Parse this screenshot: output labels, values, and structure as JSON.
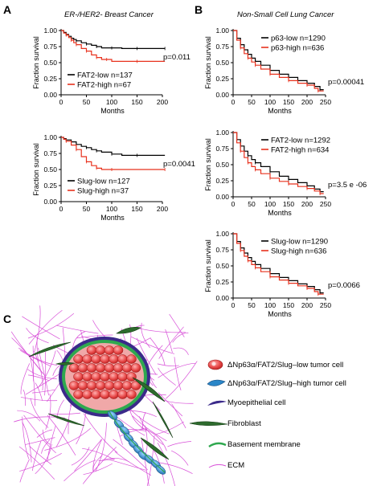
{
  "figure": {
    "panel_a": {
      "letter": "A",
      "title": "ER-/HER2- Breast Cancer"
    },
    "panel_b": {
      "letter": "B",
      "title": "Non-Small Cell Lung Cancer"
    },
    "panel_c": {
      "letter": "C",
      "legend": [
        {
          "label": "ΔNp63α/FAT2/Slug–low tumor cell",
          "icon": "red-tumor-cell-icon"
        },
        {
          "label": "ΔNp63α/FAT2/Slug–high tumor cell",
          "icon": "blue-tumor-cell-icon"
        },
        {
          "label": "Myoepithelial cell",
          "icon": "myoepithelial-cell-icon"
        },
        {
          "label": "Fibroblast",
          "icon": "fibroblast-icon"
        },
        {
          "label": "Basement membrane",
          "icon": "basement-membrane-icon"
        },
        {
          "label": "ECM",
          "icon": "ecm-fiber-icon"
        }
      ]
    },
    "colors": {
      "low": "#000000",
      "high": "#e8321e",
      "tumor_red": "#e84a4a",
      "myo": "#3b2a8a",
      "fibro": "#2e6b2e",
      "bm": "#2fa84f",
      "ecm": "#d84fd8",
      "blue": "#2a86c8"
    }
  },
  "chart_data": [
    {
      "type": "line",
      "id": "a1",
      "xlabel": "Months",
      "ylabel": "Fraction survival",
      "xlim": [
        0,
        200
      ],
      "ylim": [
        0,
        1.0
      ],
      "xticks": [
        0,
        50,
        100,
        150,
        200
      ],
      "yticks": [
        "0.00",
        "0.25",
        "0.50",
        "0.75",
        "1.00"
      ],
      "annotation": "p=0.011",
      "series": [
        {
          "name": "FAT2-low n=137",
          "color": "#000000",
          "points": [
            [
              0,
              1.0
            ],
            [
              5,
              0.97
            ],
            [
              10,
              0.94
            ],
            [
              15,
              0.91
            ],
            [
              20,
              0.88
            ],
            [
              25,
              0.86
            ],
            [
              30,
              0.84
            ],
            [
              40,
              0.81
            ],
            [
              50,
              0.79
            ],
            [
              60,
              0.77
            ],
            [
              70,
              0.75
            ],
            [
              80,
              0.73
            ],
            [
              100,
              0.73
            ],
            [
              120,
              0.72
            ],
            [
              150,
              0.72
            ],
            [
              180,
              0.72
            ],
            [
              205,
              0.72
            ]
          ]
        },
        {
          "name": "FAT2-high n=67",
          "color": "#e8321e",
          "points": [
            [
              0,
              1.0
            ],
            [
              5,
              0.96
            ],
            [
              10,
              0.93
            ],
            [
              15,
              0.89
            ],
            [
              20,
              0.85
            ],
            [
              25,
              0.81
            ],
            [
              30,
              0.78
            ],
            [
              40,
              0.72
            ],
            [
              50,
              0.68
            ],
            [
              60,
              0.62
            ],
            [
              70,
              0.58
            ],
            [
              80,
              0.55
            ],
            [
              90,
              0.55
            ],
            [
              100,
              0.52
            ],
            [
              150,
              0.52
            ],
            [
              205,
              0.52
            ]
          ]
        }
      ]
    },
    {
      "type": "line",
      "id": "a2",
      "xlabel": "Months",
      "ylabel": "Fraction survival",
      "xlim": [
        0,
        200
      ],
      "ylim": [
        0,
        1.0
      ],
      "xticks": [
        0,
        50,
        100,
        150,
        200
      ],
      "yticks": [
        "0.00",
        "0.25",
        "0.50",
        "0.75",
        "1.00"
      ],
      "annotation": "p=0.0041",
      "series": [
        {
          "name": "Slug-low n=127",
          "color": "#000000",
          "points": [
            [
              0,
              1.0
            ],
            [
              5,
              0.98
            ],
            [
              10,
              0.96
            ],
            [
              20,
              0.93
            ],
            [
              30,
              0.89
            ],
            [
              40,
              0.86
            ],
            [
              50,
              0.84
            ],
            [
              60,
              0.81
            ],
            [
              70,
              0.79
            ],
            [
              80,
              0.77
            ],
            [
              100,
              0.74
            ],
            [
              120,
              0.72
            ],
            [
              150,
              0.72
            ],
            [
              205,
              0.72
            ]
          ]
        },
        {
          "name": "Slug-high n=37",
          "color": "#e8321e",
          "points": [
            [
              0,
              1.0
            ],
            [
              5,
              0.97
            ],
            [
              10,
              0.94
            ],
            [
              20,
              0.88
            ],
            [
              30,
              0.81
            ],
            [
              40,
              0.7
            ],
            [
              50,
              0.62
            ],
            [
              60,
              0.56
            ],
            [
              70,
              0.52
            ],
            [
              80,
              0.5
            ],
            [
              100,
              0.5
            ],
            [
              150,
              0.5
            ],
            [
              205,
              0.5
            ]
          ]
        }
      ]
    },
    {
      "type": "line",
      "id": "b1",
      "xlabel": "Months",
      "ylabel": "Fraction survival",
      "xlim": [
        0,
        250
      ],
      "ylim": [
        0,
        1.0
      ],
      "xticks": [
        0,
        50,
        100,
        150,
        200,
        250
      ],
      "yticks": [
        "0.00",
        "0.25",
        "0.50",
        "0.75",
        "1.00"
      ],
      "annotation": "p=0.00041",
      "series": [
        {
          "name": "p63-low n=1290",
          "color": "#000000",
          "points": [
            [
              0,
              1.0
            ],
            [
              10,
              0.88
            ],
            [
              20,
              0.78
            ],
            [
              30,
              0.7
            ],
            [
              40,
              0.63
            ],
            [
              50,
              0.57
            ],
            [
              60,
              0.52
            ],
            [
              75,
              0.46
            ],
            [
              100,
              0.38
            ],
            [
              125,
              0.32
            ],
            [
              150,
              0.27
            ],
            [
              175,
              0.22
            ],
            [
              200,
              0.18
            ],
            [
              220,
              0.13
            ],
            [
              235,
              0.08
            ],
            [
              245,
              0.08
            ]
          ]
        },
        {
          "name": "p63-high n=636",
          "color": "#e8321e",
          "points": [
            [
              0,
              1.0
            ],
            [
              10,
              0.85
            ],
            [
              20,
              0.73
            ],
            [
              30,
              0.64
            ],
            [
              40,
              0.57
            ],
            [
              50,
              0.51
            ],
            [
              60,
              0.46
            ],
            [
              75,
              0.4
            ],
            [
              100,
              0.32
            ],
            [
              125,
              0.27
            ],
            [
              150,
              0.22
            ],
            [
              175,
              0.18
            ],
            [
              200,
              0.15
            ],
            [
              220,
              0.1
            ],
            [
              230,
              0.06
            ],
            [
              245,
              0.06
            ]
          ]
        }
      ]
    },
    {
      "type": "line",
      "id": "b2",
      "xlabel": "Months",
      "ylabel": "Fraction survival",
      "xlim": [
        0,
        250
      ],
      "ylim": [
        0,
        1.0
      ],
      "xticks": [
        0,
        50,
        100,
        150,
        200,
        250
      ],
      "yticks": [
        "0.00",
        "0.25",
        "0.50",
        "0.75",
        "1.00"
      ],
      "annotation": "p=3.5 e -06",
      "series": [
        {
          "name": "FAT2-low n=1292",
          "color": "#000000",
          "points": [
            [
              0,
              1.0
            ],
            [
              10,
              0.89
            ],
            [
              20,
              0.79
            ],
            [
              30,
              0.71
            ],
            [
              40,
              0.64
            ],
            [
              50,
              0.58
            ],
            [
              60,
              0.53
            ],
            [
              75,
              0.47
            ],
            [
              100,
              0.39
            ],
            [
              125,
              0.32
            ],
            [
              150,
              0.27
            ],
            [
              175,
              0.22
            ],
            [
              200,
              0.17
            ],
            [
              220,
              0.12
            ],
            [
              235,
              0.08
            ],
            [
              245,
              0.08
            ]
          ]
        },
        {
          "name": "FAT2-high n=634",
          "color": "#e8321e",
          "points": [
            [
              0,
              1.0
            ],
            [
              10,
              0.84
            ],
            [
              20,
              0.71
            ],
            [
              30,
              0.61
            ],
            [
              40,
              0.53
            ],
            [
              50,
              0.47
            ],
            [
              60,
              0.42
            ],
            [
              75,
              0.36
            ],
            [
              100,
              0.29
            ],
            [
              125,
              0.24
            ],
            [
              150,
              0.2
            ],
            [
              175,
              0.16
            ],
            [
              200,
              0.13
            ],
            [
              220,
              0.09
            ],
            [
              235,
              0.05
            ],
            [
              245,
              0.05
            ]
          ]
        }
      ]
    },
    {
      "type": "line",
      "id": "b3",
      "xlabel": "Months",
      "ylabel": "Fraction survival",
      "xlim": [
        0,
        250
      ],
      "ylim": [
        0,
        1.0
      ],
      "xticks": [
        0,
        50,
        100,
        150,
        200,
        250
      ],
      "yticks": [
        "0.00",
        "0.25",
        "0.50",
        "0.75",
        "1.00"
      ],
      "annotation": "p=0.0066",
      "series": [
        {
          "name": "Slug-low n=1290",
          "color": "#000000",
          "points": [
            [
              0,
              1.0
            ],
            [
              10,
              0.88
            ],
            [
              20,
              0.78
            ],
            [
              30,
              0.7
            ],
            [
              40,
              0.63
            ],
            [
              50,
              0.57
            ],
            [
              60,
              0.52
            ],
            [
              75,
              0.46
            ],
            [
              100,
              0.38
            ],
            [
              125,
              0.32
            ],
            [
              150,
              0.27
            ],
            [
              175,
              0.22
            ],
            [
              200,
              0.18
            ],
            [
              220,
              0.13
            ],
            [
              235,
              0.08
            ],
            [
              245,
              0.08
            ]
          ]
        },
        {
          "name": "Slug-high n=636",
          "color": "#e8321e",
          "points": [
            [
              0,
              1.0
            ],
            [
              10,
              0.85
            ],
            [
              20,
              0.74
            ],
            [
              30,
              0.65
            ],
            [
              40,
              0.58
            ],
            [
              50,
              0.52
            ],
            [
              60,
              0.47
            ],
            [
              75,
              0.41
            ],
            [
              100,
              0.33
            ],
            [
              125,
              0.28
            ],
            [
              150,
              0.23
            ],
            [
              175,
              0.19
            ],
            [
              200,
              0.15
            ],
            [
              220,
              0.1
            ],
            [
              230,
              0.06
            ],
            [
              245,
              0.06
            ]
          ]
        }
      ]
    }
  ]
}
